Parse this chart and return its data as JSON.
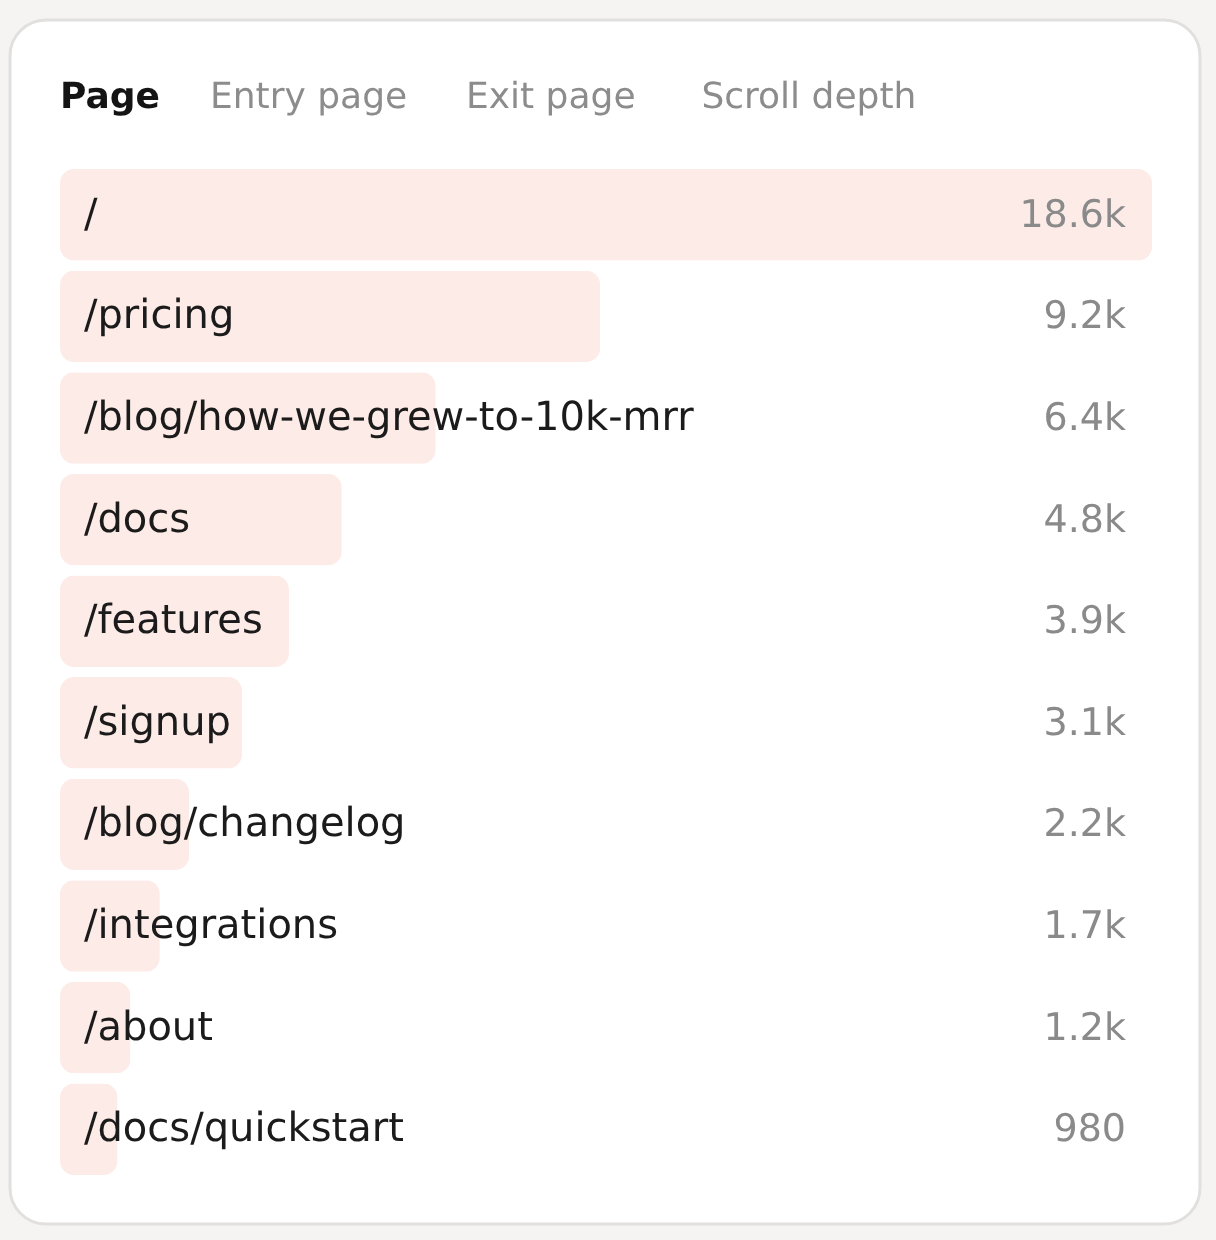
{
  "chart_data": {
    "type": "bar",
    "orientation": "horizontal",
    "title": "Page",
    "annotations": [
      "Entry page",
      "Exit page",
      "Scroll depth"
    ],
    "categories": [
      "/",
      "/pricing",
      "/blog/how-we-grew-to-10k-mrr",
      "/docs",
      "/features",
      "/signup",
      "/blog/changelog",
      "/integrations",
      "/about",
      "/docs/quickstart"
    ],
    "values": [
      18600,
      9200,
      6400,
      4800,
      3900,
      3100,
      2200,
      1700,
      1200,
      980
    ],
    "value_labels": [
      "18.6k",
      "9.2k",
      "6.4k",
      "4.8k",
      "3.9k",
      "3.1k",
      "2.2k",
      "1.7k",
      "1.2k",
      "980"
    ],
    "color": "#fdebe7",
    "tick_labels": false
  }
}
